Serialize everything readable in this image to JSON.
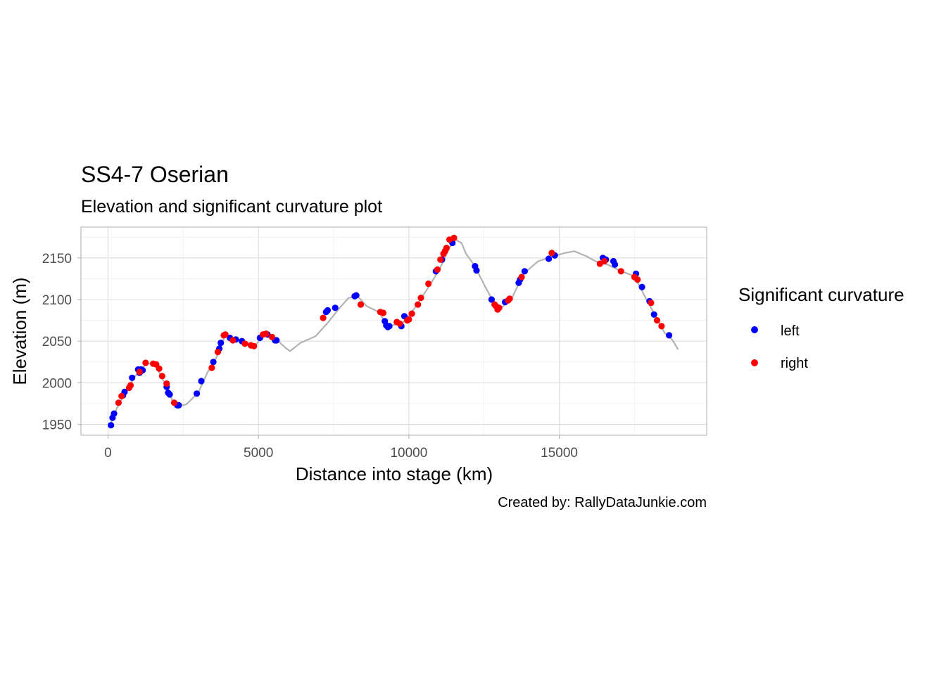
{
  "chart_data": {
    "type": "scatter",
    "title": "SS4-7 Oserian",
    "subtitle": "Elevation and significant curvature plot",
    "xlabel": "Distance into stage (km)",
    "ylabel": "Elevation (m)",
    "caption": "Created by: RallyDataJunkie.com",
    "xlim": [
      -900,
      19900
    ],
    "ylim": [
      1937,
      2187
    ],
    "x_ticks": [
      0,
      5000,
      10000,
      15000
    ],
    "x_tick_labels": [
      "0",
      "5000",
      "10000",
      "15000"
    ],
    "y_ticks": [
      1950,
      2000,
      2050,
      2100,
      2150
    ],
    "y_tick_labels": [
      "1950",
      "2000",
      "2050",
      "2100",
      "2150"
    ],
    "grid": true,
    "legend": {
      "title": "Significant curvature",
      "position": "right",
      "entries": [
        {
          "label": "left",
          "color": "#0000ff"
        },
        {
          "label": "right",
          "color": "#ff0000"
        }
      ]
    },
    "profile_color": "#b3b3b3",
    "elevation_profile": [
      [
        50,
        1948
      ],
      [
        300,
        1970
      ],
      [
        600,
        1990
      ],
      [
        900,
        2008
      ],
      [
        1100,
        2016
      ],
      [
        1300,
        2024
      ],
      [
        1600,
        2020
      ],
      [
        1900,
        1998
      ],
      [
        2150,
        1978
      ],
      [
        2350,
        1972
      ],
      [
        2600,
        1974
      ],
      [
        3000,
        1988
      ],
      [
        3300,
        2012
      ],
      [
        3600,
        2030
      ],
      [
        3900,
        2058
      ],
      [
        4300,
        2052
      ],
      [
        4900,
        2045
      ],
      [
        5200,
        2058
      ],
      [
        5600,
        2052
      ],
      [
        5900,
        2042
      ],
      [
        6050,
        2038
      ],
      [
        6400,
        2048
      ],
      [
        6900,
        2056
      ],
      [
        7300,
        2072
      ],
      [
        7700,
        2090
      ],
      [
        8000,
        2102
      ],
      [
        8300,
        2104
      ],
      [
        8600,
        2092
      ],
      [
        9000,
        2085
      ],
      [
        9300,
        2068
      ],
      [
        9800,
        2072
      ],
      [
        10200,
        2090
      ],
      [
        10600,
        2112
      ],
      [
        11000,
        2135
      ],
      [
        11300,
        2158
      ],
      [
        11500,
        2173
      ],
      [
        11750,
        2168
      ],
      [
        11900,
        2155
      ],
      [
        12200,
        2140
      ],
      [
        12500,
        2118
      ],
      [
        12800,
        2098
      ],
      [
        13000,
        2088
      ],
      [
        13400,
        2100
      ],
      [
        13800,
        2130
      ],
      [
        14100,
        2140
      ],
      [
        14300,
        2146
      ],
      [
        14800,
        2152
      ],
      [
        15200,
        2156
      ],
      [
        15500,
        2158
      ],
      [
        15900,
        2152
      ],
      [
        16200,
        2146
      ],
      [
        16600,
        2142
      ],
      [
        17000,
        2135
      ],
      [
        17500,
        2128
      ],
      [
        17900,
        2100
      ],
      [
        18200,
        2080
      ],
      [
        18500,
        2060
      ],
      [
        18750,
        2052
      ],
      [
        18950,
        2040
      ]
    ],
    "series": [
      {
        "name": "left",
        "color": "#0000ff",
        "points": [
          [
            100,
            1949
          ],
          [
            150,
            1958
          ],
          [
            200,
            1963
          ],
          [
            500,
            1985
          ],
          [
            550,
            1989
          ],
          [
            800,
            2006
          ],
          [
            1000,
            2016
          ],
          [
            1050,
            2012
          ],
          [
            1100,
            2016
          ],
          [
            1150,
            2015
          ],
          [
            1950,
            1995
          ],
          [
            2000,
            1988
          ],
          [
            2050,
            1986
          ],
          [
            2300,
            1973
          ],
          [
            2350,
            1973
          ],
          [
            2950,
            1987
          ],
          [
            3100,
            2002
          ],
          [
            3500,
            2025
          ],
          [
            3700,
            2041
          ],
          [
            3750,
            2048
          ],
          [
            4050,
            2054
          ],
          [
            4250,
            2052
          ],
          [
            4450,
            2050
          ],
          [
            5050,
            2054
          ],
          [
            5300,
            2058
          ],
          [
            5550,
            2051
          ],
          [
            5600,
            2051
          ],
          [
            7250,
            2085
          ],
          [
            7300,
            2087
          ],
          [
            7550,
            2090
          ],
          [
            8200,
            2104
          ],
          [
            8250,
            2105
          ],
          [
            9200,
            2074
          ],
          [
            9250,
            2069
          ],
          [
            9300,
            2067
          ],
          [
            9350,
            2068
          ],
          [
            9750,
            2068
          ],
          [
            9850,
            2080
          ],
          [
            10900,
            2134
          ],
          [
            11100,
            2148
          ],
          [
            11450,
            2168
          ],
          [
            12200,
            2140
          ],
          [
            12250,
            2135
          ],
          [
            12750,
            2100
          ],
          [
            13200,
            2097
          ],
          [
            13650,
            2120
          ],
          [
            13700,
            2124
          ],
          [
            13850,
            2134
          ],
          [
            14650,
            2149
          ],
          [
            14850,
            2153
          ],
          [
            16450,
            2150
          ],
          [
            16550,
            2148
          ],
          [
            16800,
            2146
          ],
          [
            16850,
            2142
          ],
          [
            17550,
            2131
          ],
          [
            17750,
            2115
          ],
          [
            18000,
            2098
          ],
          [
            18150,
            2082
          ],
          [
            18650,
            2057
          ]
        ]
      },
      {
        "name": "right",
        "color": "#ff0000",
        "points": [
          [
            350,
            1976
          ],
          [
            450,
            1984
          ],
          [
            700,
            1994
          ],
          [
            750,
            1997
          ],
          [
            1050,
            2013
          ],
          [
            1250,
            2024
          ],
          [
            1500,
            2023
          ],
          [
            1600,
            2022
          ],
          [
            1700,
            2017
          ],
          [
            1800,
            2008
          ],
          [
            1950,
            1999
          ],
          [
            2200,
            1976
          ],
          [
            3450,
            2018
          ],
          [
            3650,
            2037
          ],
          [
            3850,
            2057
          ],
          [
            3900,
            2058
          ],
          [
            4150,
            2051
          ],
          [
            4550,
            2047
          ],
          [
            4750,
            2045
          ],
          [
            4850,
            2044
          ],
          [
            5150,
            2058
          ],
          [
            5250,
            2059
          ],
          [
            5450,
            2055
          ],
          [
            7150,
            2078
          ],
          [
            8400,
            2094
          ],
          [
            9050,
            2085
          ],
          [
            9150,
            2084
          ],
          [
            9600,
            2073
          ],
          [
            9700,
            2071
          ],
          [
            9950,
            2075
          ],
          [
            10000,
            2076
          ],
          [
            10100,
            2083
          ],
          [
            10300,
            2094
          ],
          [
            10400,
            2102
          ],
          [
            10650,
            2119
          ],
          [
            10950,
            2136
          ],
          [
            11050,
            2148
          ],
          [
            11150,
            2155
          ],
          [
            11200,
            2158
          ],
          [
            11250,
            2162
          ],
          [
            11350,
            2172
          ],
          [
            11500,
            2174
          ],
          [
            12850,
            2094
          ],
          [
            12900,
            2092
          ],
          [
            12950,
            2088
          ],
          [
            13000,
            2090
          ],
          [
            13300,
            2099
          ],
          [
            13350,
            2101
          ],
          [
            13750,
            2127
          ],
          [
            14750,
            2156
          ],
          [
            16350,
            2143
          ],
          [
            16500,
            2146
          ],
          [
            17050,
            2134
          ],
          [
            17500,
            2127
          ],
          [
            17600,
            2124
          ],
          [
            18050,
            2096
          ],
          [
            18250,
            2075
          ],
          [
            18400,
            2068
          ]
        ]
      }
    ]
  }
}
